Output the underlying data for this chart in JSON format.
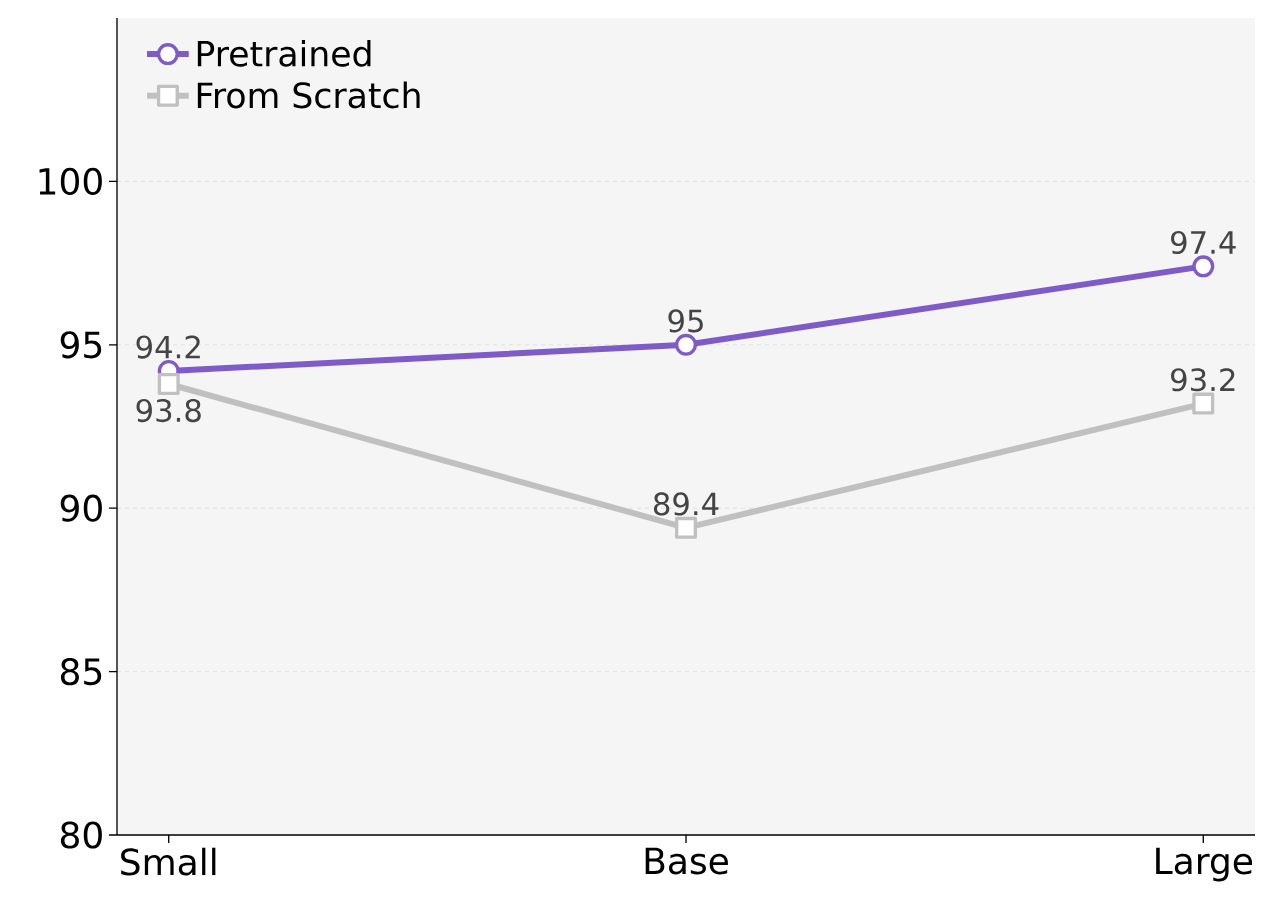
{
  "chart_data": {
    "type": "line",
    "categories": [
      "Small",
      "Base",
      "Large"
    ],
    "series": [
      {
        "name": "Pretrained",
        "color": "#7e5bc6",
        "marker": "circle",
        "values": [
          94.2,
          95,
          97.4
        ]
      },
      {
        "name": "From Scratch",
        "color": "#c0c0c0",
        "marker": "square",
        "values": [
          93.8,
          89.4,
          93.2
        ]
      }
    ],
    "ylim": [
      80,
      105
    ],
    "yticks": [
      80,
      85,
      90,
      95,
      100
    ],
    "grid": "y",
    "legend": "top left",
    "data_labels": true,
    "line_style": "solid"
  }
}
